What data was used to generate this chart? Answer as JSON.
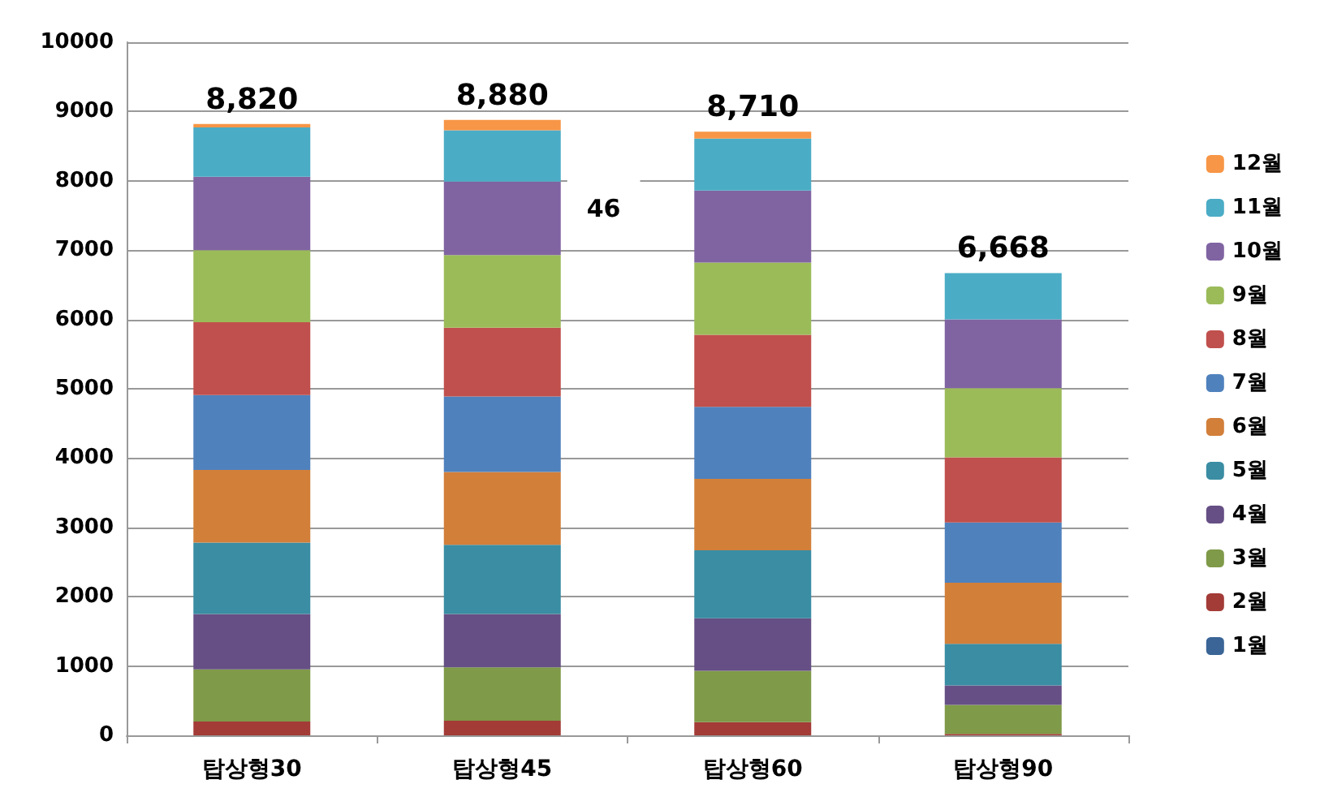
{
  "chart_data": {
    "type": "bar",
    "stacked": true,
    "categories": [
      "탑상형30",
      "탑상형45",
      "탑상형60",
      "탑상형90"
    ],
    "series": [
      {
        "name": "1월",
        "color": "#3a6596",
        "values": [
          0,
          0,
          0,
          0
        ]
      },
      {
        "name": "2월",
        "color": "#a33b37",
        "values": [
          200,
          210,
          190,
          20
        ]
      },
      {
        "name": "3월",
        "color": "#7f9a48",
        "values": [
          750,
          770,
          740,
          420
        ]
      },
      {
        "name": "4월",
        "color": "#664f84",
        "values": [
          800,
          770,
          760,
          280
        ]
      },
      {
        "name": "5월",
        "color": "#3a8da3",
        "values": [
          1030,
          1000,
          980,
          600
        ]
      },
      {
        "name": "6월",
        "color": "#d27f3a",
        "values": [
          1050,
          1050,
          1030,
          880
        ]
      },
      {
        "name": "7월",
        "color": "#4f81bd",
        "values": [
          1080,
          1090,
          1040,
          870
        ]
      },
      {
        "name": "8월",
        "color": "#c0504d",
        "values": [
          1050,
          990,
          1040,
          940
        ]
      },
      {
        "name": "9월",
        "color": "#9bbb59",
        "values": [
          1040,
          1050,
          1040,
          1000
        ]
      },
      {
        "name": "10월",
        "color": "#8064a2",
        "values": [
          1060,
          1060,
          1040,
          990
        ]
      },
      {
        "name": "11월",
        "color": "#4bacc6",
        "values": [
          710,
          740,
          750,
          670
        ]
      },
      {
        "name": "12월",
        "color": "#f79646",
        "values": [
          50,
          150,
          100,
          0
        ]
      }
    ],
    "totals": [
      "8,820",
      "8,880",
      "8,710",
      "6,668"
    ],
    "annotations": [
      "46"
    ],
    "ylim": [
      0,
      10000
    ],
    "yticks": [
      0,
      1000,
      2000,
      3000,
      4000,
      5000,
      6000,
      7000,
      8000,
      9000,
      10000
    ],
    "grid": "y",
    "legend": "right"
  }
}
